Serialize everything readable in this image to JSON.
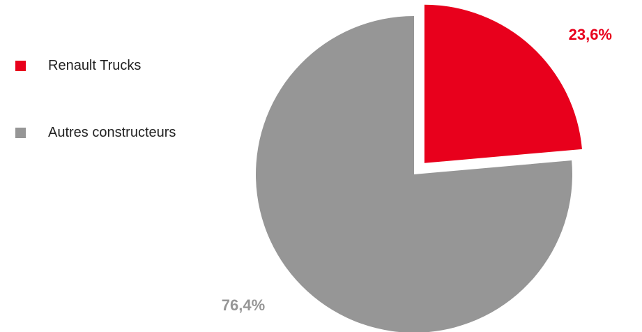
{
  "chart_data": {
    "type": "pie",
    "slices": [
      {
        "name": "Renault Trucks",
        "value": 23.6,
        "label": "23,6%",
        "color": "#e8001c",
        "exploded": true
      },
      {
        "name": "Autres constructeurs",
        "value": 76.4,
        "label": "76,4%",
        "color": "#969696",
        "exploded": false
      }
    ],
    "legend": {
      "placement": "left",
      "items": [
        {
          "label": "Renault Trucks",
          "color": "#e8001c"
        },
        {
          "label": "Autres constructeurs",
          "color": "#969696"
        }
      ]
    },
    "start_angle": "12 o'clock",
    "direction": "clockwise"
  }
}
